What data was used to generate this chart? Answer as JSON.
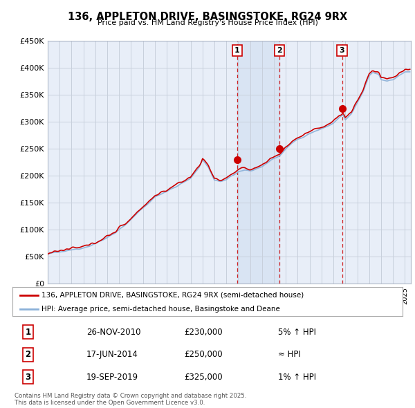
{
  "title": "136, APPLETON DRIVE, BASINGSTOKE, RG24 9RX",
  "subtitle": "Price paid vs. HM Land Registry's House Price Index (HPI)",
  "ylim": [
    0,
    450000
  ],
  "xlim_start": 1995,
  "xlim_end": 2025.5,
  "background_color": "#e8eef8",
  "grid_color": "#d0d8e8",
  "hpi_color": "#8ab0d8",
  "price_color": "#cc0000",
  "shade_color": "#dde8f5",
  "legend_label_price": "136, APPLETON DRIVE, BASINGSTOKE, RG24 9RX (semi-detached house)",
  "legend_label_hpi": "HPI: Average price, semi-detached house, Basingstoke and Deane",
  "transaction_dates": [
    2010.92,
    2014.46,
    2019.72
  ],
  "transaction_prices": [
    230000,
    250000,
    325000
  ],
  "transaction_labels": [
    "1",
    "2",
    "3"
  ],
  "transaction_text": [
    [
      "1",
      "26-NOV-2010",
      "£230,000",
      "5% ↑ HPI"
    ],
    [
      "2",
      "17-JUN-2014",
      "£250,000",
      "≈ HPI"
    ],
    [
      "3",
      "19-SEP-2019",
      "£325,000",
      "1% ↑ HPI"
    ]
  ],
  "footer": "Contains HM Land Registry data © Crown copyright and database right 2025.\nThis data is licensed under the Open Government Licence v3.0.",
  "ytick_labels": [
    "£0",
    "£50K",
    "£100K",
    "£150K",
    "£200K",
    "£250K",
    "£300K",
    "£350K",
    "£400K",
    "£450K"
  ],
  "ytick_values": [
    0,
    50000,
    100000,
    150000,
    200000,
    250000,
    300000,
    350000,
    400000,
    450000
  ]
}
